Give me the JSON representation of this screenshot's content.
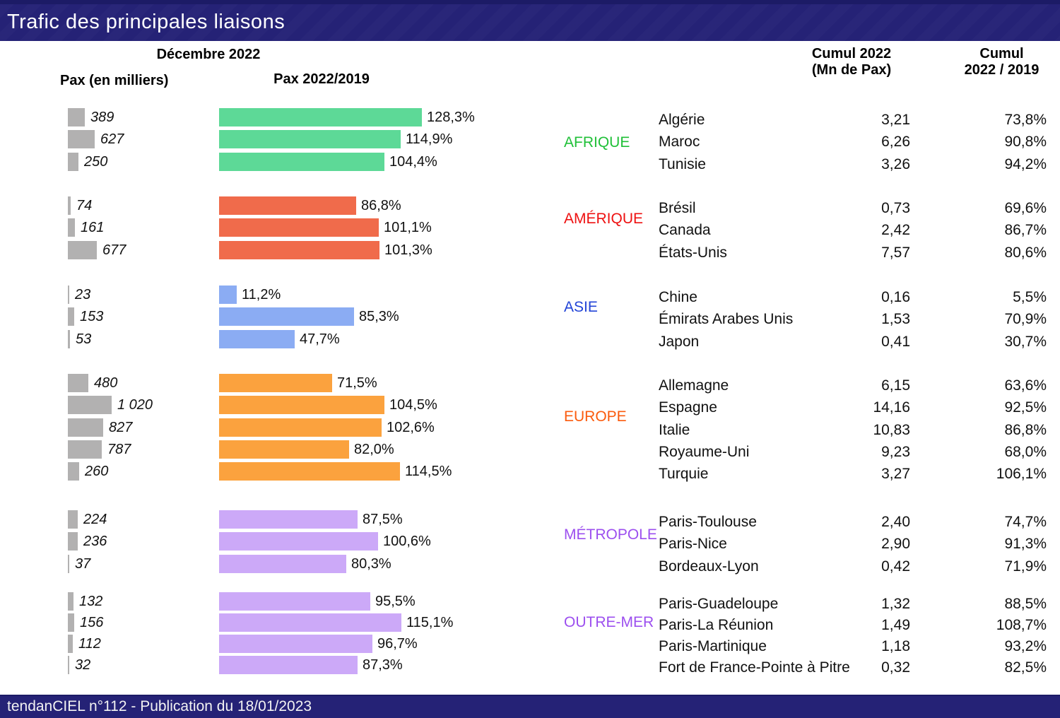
{
  "title": "Trafic des principales liaisons",
  "footer": "tendanCIEL n°112 - Publication du 18/01/2023",
  "headers": {
    "month": "Décembre 2022",
    "pax": "Pax (en milliers)",
    "pax_ratio": "Pax 2022/2019",
    "cumul_line1": "Cumul 2022",
    "cumul_line2": "(Mn de Pax)",
    "cumul_ratio_line1": "Cumul",
    "cumul_ratio_line2": "2022 / 2019"
  },
  "colors": {
    "banner_bg": "#252276",
    "banner_edge": "#1c1b66",
    "gray_bar": "#b2b1b1",
    "afrique_bar": "#5dd997",
    "amerique_bar": "#f06b4b",
    "asie_bar": "#8bacf3",
    "europe_bar": "#fba23e",
    "metropole_bar": "#cca9f8",
    "outremer_bar": "#cca9f8",
    "afrique_label": "#20c038",
    "amerique_label": "#ee1111",
    "asie_label": "#2244d7",
    "europe_label": "#fb5b0d",
    "metropole_label": "#9c4fef",
    "outremer_label": "#9c4fef"
  },
  "chart_data": {
    "type": "bar",
    "title": "Trafic des principales liaisons",
    "period": "Décembre 2022",
    "columns": [
      "Pax (en milliers)",
      "Pax 2022/2019",
      "Cumul 2022 (Mn de Pax)",
      "Cumul 2022 / 2019"
    ],
    "groups": [
      {
        "name": "AFRIQUE",
        "label_color": "#20c038",
        "bar_color": "#5dd997",
        "rows": [
          {
            "country": "Algérie",
            "pax": 389,
            "pax_label": "389",
            "pct": 128.3,
            "pct_label": "128,3%",
            "cumul": "3,21",
            "cumul_pct": "73,8%"
          },
          {
            "country": "Maroc",
            "pax": 627,
            "pax_label": "627",
            "pct": 114.9,
            "pct_label": "114,9%",
            "cumul": "6,26",
            "cumul_pct": "90,8%"
          },
          {
            "country": "Tunisie",
            "pax": 250,
            "pax_label": "250",
            "pct": 104.4,
            "pct_label": "104,4%",
            "cumul": "3,26",
            "cumul_pct": "94,2%"
          }
        ]
      },
      {
        "name": "AMÉRIQUE",
        "label_color": "#ee1111",
        "bar_color": "#f06b4b",
        "rows": [
          {
            "country": "Brésil",
            "pax": 74,
            "pax_label": "74",
            "pct": 86.8,
            "pct_label": "86,8%",
            "cumul": "0,73",
            "cumul_pct": "69,6%"
          },
          {
            "country": "Canada",
            "pax": 161,
            "pax_label": "161",
            "pct": 101.1,
            "pct_label": "101,1%",
            "cumul": "2,42",
            "cumul_pct": "86,7%"
          },
          {
            "country": "États-Unis",
            "pax": 677,
            "pax_label": "677",
            "pct": 101.3,
            "pct_label": "101,3%",
            "cumul": "7,57",
            "cumul_pct": "80,6%"
          }
        ]
      },
      {
        "name": "ASIE",
        "label_color": "#2244d7",
        "bar_color": "#8bacf3",
        "rows": [
          {
            "country": "Chine",
            "pax": 23,
            "pax_label": "23",
            "pct": 11.2,
            "pct_label": "11,2%",
            "cumul": "0,16",
            "cumul_pct": "5,5%"
          },
          {
            "country": "Émirats Arabes Unis",
            "pax": 153,
            "pax_label": "153",
            "pct": 85.3,
            "pct_label": "85,3%",
            "cumul": "1,53",
            "cumul_pct": "70,9%"
          },
          {
            "country": "Japon",
            "pax": 53,
            "pax_label": "53",
            "pct": 47.7,
            "pct_label": "47,7%",
            "cumul": "0,41",
            "cumul_pct": "30,7%"
          }
        ]
      },
      {
        "name": "EUROPE",
        "label_color": "#fb5b0d",
        "bar_color": "#fba23e",
        "rows": [
          {
            "country": "Allemagne",
            "pax": 480,
            "pax_label": "480",
            "pct": 71.5,
            "pct_label": "71,5%",
            "cumul": "6,15",
            "cumul_pct": "63,6%"
          },
          {
            "country": "Espagne",
            "pax": 1020,
            "pax_label": "1 020",
            "pct": 104.5,
            "pct_label": "104,5%",
            "cumul": "14,16",
            "cumul_pct": "92,5%"
          },
          {
            "country": "Italie",
            "pax": 827,
            "pax_label": "827",
            "pct": 102.6,
            "pct_label": "102,6%",
            "cumul": "10,83",
            "cumul_pct": "86,8%"
          },
          {
            "country": "Royaume-Uni",
            "pax": 787,
            "pax_label": "787",
            "pct": 82.0,
            "pct_label": "82,0%",
            "cumul": "9,23",
            "cumul_pct": "68,0%"
          },
          {
            "country": "Turquie",
            "pax": 260,
            "pax_label": "260",
            "pct": 114.5,
            "pct_label": "114,5%",
            "cumul": "3,27",
            "cumul_pct": "106,1%"
          }
        ]
      },
      {
        "name": "MÉTROPOLE",
        "label_color": "#9c4fef",
        "bar_color": "#cca9f8",
        "rows": [
          {
            "country": "Paris-Toulouse",
            "pax": 224,
            "pax_label": "224",
            "pct": 87.5,
            "pct_label": "87,5%",
            "cumul": "2,40",
            "cumul_pct": "74,7%"
          },
          {
            "country": "Paris-Nice",
            "pax": 236,
            "pax_label": "236",
            "pct": 100.6,
            "pct_label": "100,6%",
            "cumul": "2,90",
            "cumul_pct": "91,3%"
          },
          {
            "country": "Bordeaux-Lyon",
            "pax": 37,
            "pax_label": "37",
            "pct": 80.3,
            "pct_label": "80,3%",
            "cumul": "0,42",
            "cumul_pct": "71,9%"
          }
        ]
      },
      {
        "name": "OUTRE-MER",
        "label_color": "#9c4fef",
        "bar_color": "#cca9f8",
        "rows": [
          {
            "country": "Paris-Guadeloupe",
            "pax": 132,
            "pax_label": "132",
            "pct": 95.5,
            "pct_label": "95,5%",
            "cumul": "1,32",
            "cumul_pct": "88,5%"
          },
          {
            "country": "Paris-La Réunion",
            "pax": 156,
            "pax_label": "156",
            "pct": 115.1,
            "pct_label": "115,1%",
            "cumul": "1,49",
            "cumul_pct": "108,7%"
          },
          {
            "country": "Paris-Martinique",
            "pax": 112,
            "pax_label": "112",
            "pct": 96.7,
            "pct_label": "96,7%",
            "cumul": "1,18",
            "cumul_pct": "93,2%"
          },
          {
            "country": "Fort de France-Pointe à Pitre",
            "pax": 32,
            "pax_label": "32",
            "pct": 87.3,
            "pct_label": "87,3%",
            "cumul": "0,32",
            "cumul_pct": "82,5%"
          }
        ]
      }
    ]
  }
}
